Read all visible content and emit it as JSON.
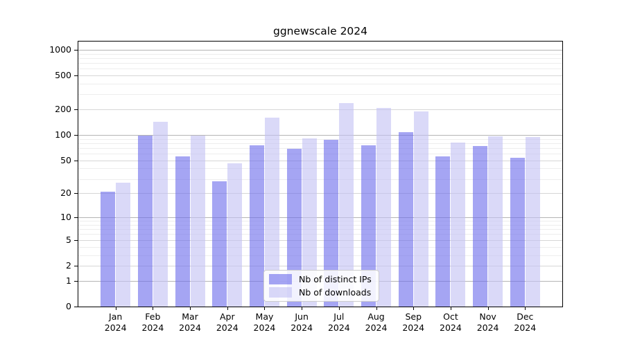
{
  "chart_data": {
    "type": "bar",
    "title": "ggnewscale 2024",
    "months": [
      "Jan",
      "Feb",
      "Mar",
      "Apr",
      "May",
      "Jun",
      "Jul",
      "Aug",
      "Sep",
      "Oct",
      "Nov",
      "Dec"
    ],
    "year": "2024",
    "series": [
      {
        "name": "Nb of distinct IPs",
        "color": "rgba(110,110,235,0.62)",
        "solid_color": "#a8a8f3",
        "values": [
          21,
          98,
          56,
          28,
          76,
          69,
          87,
          76,
          107,
          56,
          74,
          54
        ]
      },
      {
        "name": "Nb of downloads",
        "color": "rgba(196,194,244,0.62)",
        "solid_color": "#dbdaf8",
        "values": [
          27,
          143,
          98,
          46,
          160,
          92,
          236,
          209,
          188,
          81,
          97,
          94
        ]
      }
    ],
    "y_axis": {
      "scale": "log1p",
      "tick_values": [
        0,
        1,
        2,
        5,
        10,
        20,
        50,
        100,
        200,
        500,
        1000
      ],
      "minor_values": [
        3,
        4,
        6,
        7,
        8,
        9,
        30,
        40,
        60,
        70,
        80,
        90,
        300,
        400,
        600,
        700,
        800,
        900
      ],
      "top_value": 1100
    },
    "legend_position": "lower center",
    "grid": "on",
    "colors": {
      "grid_major": "#b4b4b4",
      "grid_mid": "#d6d6d6",
      "grid_minor": "#ededed",
      "spine": "#000000"
    }
  }
}
